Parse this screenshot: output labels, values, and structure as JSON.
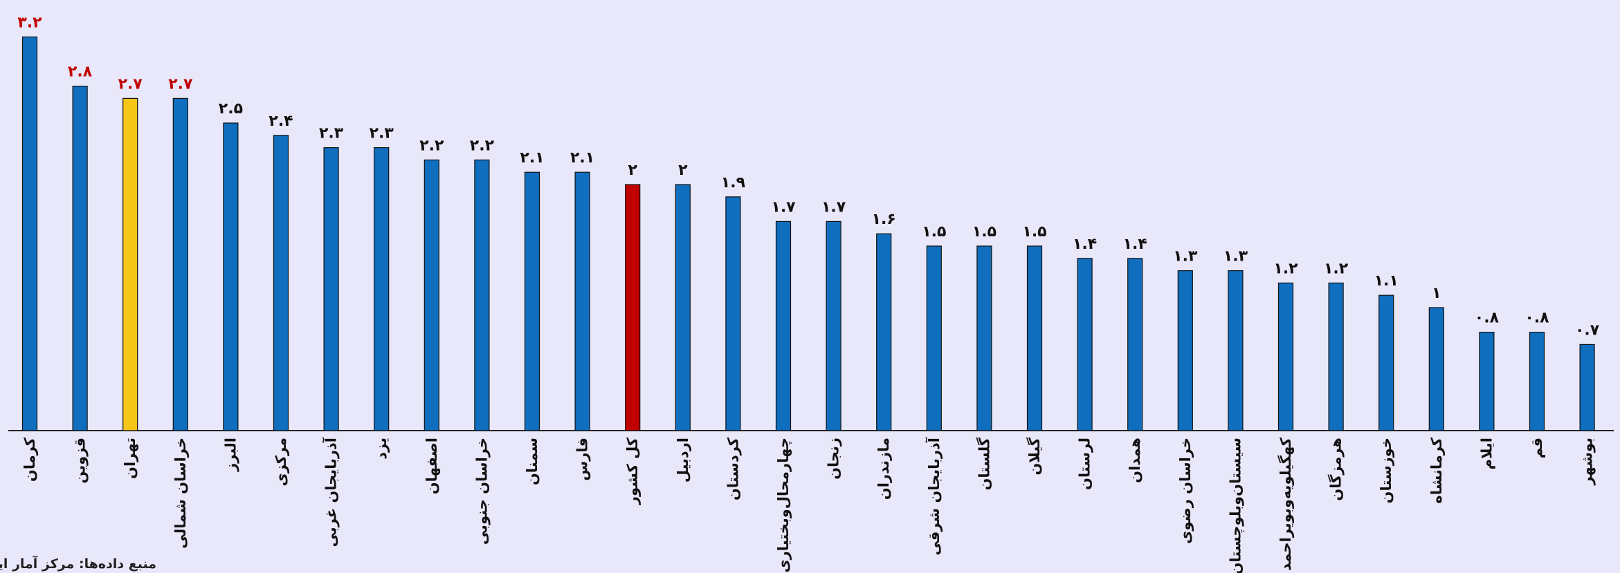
{
  "chart_data": {
    "type": "bar",
    "categories": [
      "کرمان",
      "قزوین",
      "تهران",
      "خراسان شمالی",
      "البرز",
      "مرکزی",
      "آذربایجان غربی",
      "یزد",
      "اصفهان",
      "خراسان جنوبی",
      "سمنان",
      "فارس",
      "کل کشور",
      "اردبیل",
      "کردستان",
      "چهارمحال‌وبختیاری",
      "زنجان",
      "مازندران",
      "آذربایجان شرقی",
      "گلستان",
      "گیلان",
      "لرستان",
      "همدان",
      "خراسان رضوی",
      "سیستان‌وبلوچستان",
      "کهگیلویه‌وبویراحمد",
      "هرمزگان",
      "خوزستان",
      "کرمانشاه",
      "ایلام",
      "قم",
      "بوشهر"
    ],
    "values": [
      3.2,
      2.8,
      2.7,
      2.7,
      2.5,
      2.4,
      2.3,
      2.3,
      2.2,
      2.2,
      2.1,
      2.1,
      2,
      2,
      1.9,
      1.7,
      1.7,
      1.6,
      1.5,
      1.5,
      1.5,
      1.4,
      1.4,
      1.3,
      1.3,
      1.2,
      1.2,
      1.1,
      1,
      0.8,
      0.8,
      0.7
    ],
    "value_labels": [
      "۳.۲",
      "۲.۸",
      "۲.۷",
      "۲.۷",
      "۲.۵",
      "۲.۴",
      "۲.۳",
      "۲.۳",
      "۲.۲",
      "۲.۲",
      "۲.۱",
      "۲.۱",
      "۲",
      "۲",
      "۱.۹",
      "۱.۷",
      "۱.۷",
      "۱.۶",
      "۱.۵",
      "۱.۵",
      "۱.۵",
      "۱.۴",
      "۱.۴",
      "۱.۳",
      "۱.۳",
      "۱.۲",
      "۱.۲",
      "۱.۱",
      "۱",
      "۰.۸",
      "۰.۸",
      "۰.۷"
    ],
    "colors": [
      "#0f6ebe",
      "#0f6ebe",
      "#f5c518",
      "#0f6ebe",
      "#0f6ebe",
      "#0f6ebe",
      "#0f6ebe",
      "#0f6ebe",
      "#0f6ebe",
      "#0f6ebe",
      "#0f6ebe",
      "#0f6ebe",
      "#c00000",
      "#0f6ebe",
      "#0f6ebe",
      "#0f6ebe",
      "#0f6ebe",
      "#0f6ebe",
      "#0f6ebe",
      "#0f6ebe",
      "#0f6ebe",
      "#0f6ebe",
      "#0f6ebe",
      "#0f6ebe",
      "#0f6ebe",
      "#0f6ebe",
      "#0f6ebe",
      "#0f6ebe",
      "#0f6ebe",
      "#0f6ebe",
      "#0f6ebe",
      "#0f6ebe"
    ],
    "label_colors": [
      "#c00000",
      "#c00000",
      "#c00000",
      "#c00000",
      "#111111",
      "#111111",
      "#111111",
      "#111111",
      "#111111",
      "#111111",
      "#111111",
      "#111111",
      "#111111",
      "#111111",
      "#111111",
      "#111111",
      "#111111",
      "#111111",
      "#111111",
      "#111111",
      "#111111",
      "#111111",
      "#111111",
      "#111111",
      "#111111",
      "#111111",
      "#111111",
      "#111111",
      "#111111",
      "#111111",
      "#111111",
      "#111111"
    ],
    "ylim": [
      0,
      3.5
    ],
    "source": "منبع داده‌ها: مرکز آمار ایران"
  }
}
